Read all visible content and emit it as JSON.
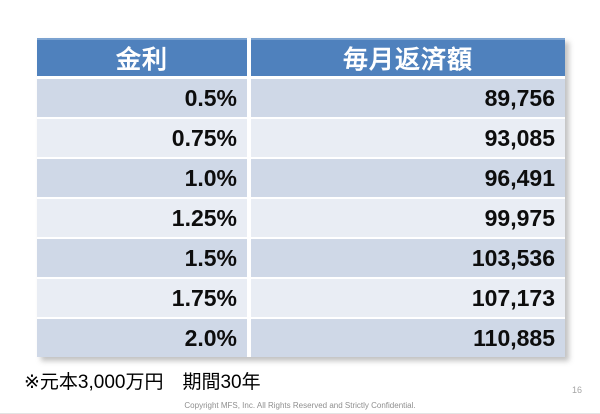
{
  "slide": {
    "footnote": "※元本3,000万円　期間30年",
    "copyright": "Copyright MFS, Inc.  All Rights Reserved and Strictly Confidential.",
    "page_number": "16"
  },
  "table": {
    "headers": [
      "金利",
      "毎月返済額"
    ],
    "rows": [
      {
        "rate": "0.5%",
        "payment": "89,756"
      },
      {
        "rate": "0.75%",
        "payment": "93,085"
      },
      {
        "rate": "1.0%",
        "payment": "96,491"
      },
      {
        "rate": "1.25%",
        "payment": "99,975"
      },
      {
        "rate": "1.5%",
        "payment": "103,536"
      },
      {
        "rate": "1.75%",
        "payment": "107,173"
      },
      {
        "rate": "2.0%",
        "payment": "110,885"
      }
    ]
  },
  "colors": {
    "header_bg": "#4f81bd",
    "header_text": "#ffffff",
    "row_band_dark": "#cfd8e7",
    "row_band_light": "#e9edf4",
    "body_text": "#0d0d0d",
    "muted_text": "#8f8f8f"
  },
  "chart_data": {
    "type": "table",
    "columns": [
      "金利",
      "毎月返済額"
    ],
    "rows": [
      [
        "0.5%",
        89756
      ],
      [
        "0.75%",
        93085
      ],
      [
        "1.0%",
        96491
      ],
      [
        "1.25%",
        99975
      ],
      [
        "1.5%",
        103536
      ],
      [
        "1.75%",
        107173
      ],
      [
        "2.0%",
        110885
      ]
    ],
    "footnote": "※元本3,000万円　期間30年"
  }
}
